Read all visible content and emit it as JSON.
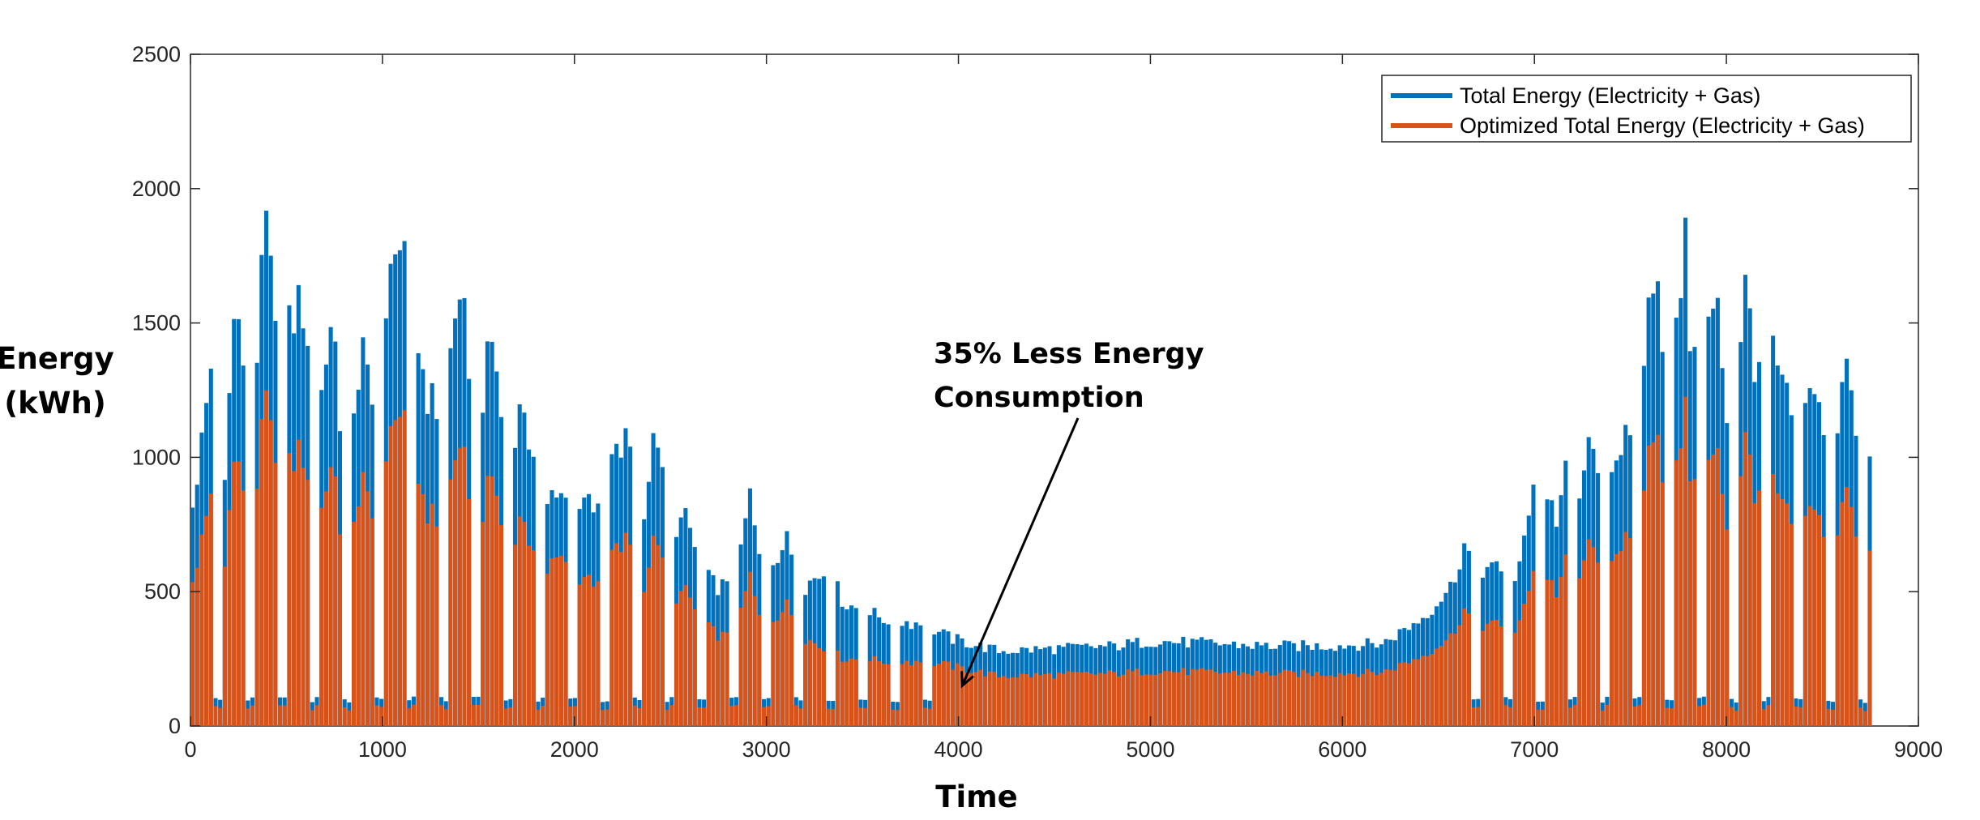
{
  "chart_data": {
    "type": "bar",
    "xlabel": "Time",
    "ylabel_lines": [
      "Energy",
      "(kWh)"
    ],
    "xlim": [
      0,
      9000
    ],
    "ylim": [
      0,
      2500
    ],
    "xticks": [
      "0",
      "1000",
      "2000",
      "3000",
      "4000",
      "5000",
      "6000",
      "7000",
      "8000",
      "9000"
    ],
    "yticks": [
      "0",
      "500",
      "1000",
      "1500",
      "2000",
      "2500"
    ],
    "grid": false,
    "legend_position": "top-right",
    "series": [
      {
        "name": "Total Energy (Electricity + Gas)",
        "color": "#0072BD",
        "peaks": [
          [
            0,
            880
          ],
          [
            70,
            1230
          ],
          [
            100,
            1460
          ],
          [
            170,
            1050
          ],
          [
            230,
            1770
          ],
          [
            270,
            1300
          ],
          [
            310,
            1250
          ],
          [
            390,
            2060
          ],
          [
            420,
            1600
          ],
          [
            450,
            1450
          ],
          [
            570,
            1740
          ],
          [
            610,
            1330
          ],
          [
            650,
            1200
          ],
          [
            730,
            1680
          ],
          [
            770,
            1230
          ],
          [
            810,
            1180
          ],
          [
            890,
            1500
          ],
          [
            930,
            1270
          ],
          [
            970,
            1200
          ],
          [
            1060,
            2050
          ],
          [
            1090,
            1860
          ],
          [
            1120,
            1750
          ],
          [
            1150,
            1630
          ],
          [
            1230,
            1310
          ],
          [
            1260,
            1280
          ],
          [
            1300,
            1240
          ],
          [
            1400,
            1810
          ],
          [
            1440,
            1300
          ],
          [
            1480,
            1210
          ],
          [
            1570,
            1570
          ],
          [
            1610,
            1200
          ],
          [
            1650,
            1150
          ],
          [
            1730,
            1290
          ],
          [
            1770,
            1040
          ],
          [
            1810,
            960
          ],
          [
            1900,
            930
          ],
          [
            1960,
            860
          ],
          [
            2000,
            920
          ],
          [
            2060,
            920
          ],
          [
            2100,
            890
          ],
          [
            2160,
            1050
          ],
          [
            2220,
            1080
          ],
          [
            2260,
            1140
          ],
          [
            2300,
            1110
          ],
          [
            2350,
            880
          ],
          [
            2420,
            1200
          ],
          [
            2470,
            800
          ],
          [
            2580,
            820
          ],
          [
            2640,
            640
          ],
          [
            2700,
            570
          ],
          [
            2760,
            560
          ],
          [
            2830,
            520
          ],
          [
            2900,
            940
          ],
          [
            2960,
            620
          ],
          [
            3100,
            740
          ],
          [
            3180,
            560
          ],
          [
            3300,
            620
          ],
          [
            3400,
            490
          ],
          [
            3600,
            430
          ],
          [
            3800,
            410
          ],
          [
            3950,
            350
          ],
          [
            4200,
            300
          ],
          [
            4500,
            310
          ],
          [
            4800,
            320
          ],
          [
            5000,
            340
          ],
          [
            5300,
            330
          ],
          [
            5600,
            320
          ],
          [
            5900,
            320
          ],
          [
            6200,
            330
          ],
          [
            6400,
            430
          ],
          [
            6560,
            560
          ],
          [
            6620,
            730
          ],
          [
            6680,
            640
          ],
          [
            6800,
            620
          ],
          [
            6900,
            560
          ],
          [
            7000,
            1090
          ],
          [
            7060,
            930
          ],
          [
            7100,
            820
          ],
          [
            7200,
            1160
          ],
          [
            7230,
            860
          ],
          [
            7290,
            1240
          ],
          [
            7330,
            850
          ],
          [
            7380,
            1060
          ],
          [
            7460,
            1180
          ],
          [
            7520,
            1000
          ],
          [
            7620,
            1950
          ],
          [
            7650,
            1520
          ],
          [
            7690,
            1470
          ],
          [
            7780,
            1930
          ],
          [
            7800,
            1440
          ],
          [
            7840,
            1400
          ],
          [
            7930,
            1800
          ],
          [
            7960,
            1450
          ],
          [
            7990,
            1280
          ],
          [
            8100,
            1810
          ],
          [
            8120,
            1450
          ],
          [
            8180,
            1330
          ],
          [
            8270,
            1550
          ],
          [
            8320,
            1230
          ],
          [
            8380,
            1200
          ],
          [
            8460,
            1380
          ],
          [
            8500,
            1200
          ],
          [
            8550,
            1120
          ],
          [
            8610,
            1430
          ],
          [
            8650,
            1300
          ],
          [
            8700,
            1110
          ],
          [
            8740,
            1060
          ]
        ]
      },
      {
        "name": "Optimized Total Energy (Electricity + Gas)",
        "color": "#D95319",
        "peaks": [
          [
            0,
            580
          ],
          [
            70,
            800
          ],
          [
            100,
            950
          ],
          [
            170,
            680
          ],
          [
            230,
            1150
          ],
          [
            270,
            850
          ],
          [
            310,
            820
          ],
          [
            390,
            1340
          ],
          [
            420,
            1040
          ],
          [
            450,
            940
          ],
          [
            570,
            1130
          ],
          [
            610,
            860
          ],
          [
            650,
            780
          ],
          [
            730,
            1090
          ],
          [
            770,
            800
          ],
          [
            810,
            770
          ],
          [
            890,
            980
          ],
          [
            930,
            820
          ],
          [
            970,
            780
          ],
          [
            1060,
            1330
          ],
          [
            1090,
            1210
          ],
          [
            1120,
            1140
          ],
          [
            1150,
            1060
          ],
          [
            1230,
            850
          ],
          [
            1260,
            830
          ],
          [
            1300,
            810
          ],
          [
            1400,
            1180
          ],
          [
            1440,
            850
          ],
          [
            1480,
            790
          ],
          [
            1570,
            1020
          ],
          [
            1610,
            780
          ],
          [
            1650,
            750
          ],
          [
            1730,
            840
          ],
          [
            1770,
            680
          ],
          [
            1810,
            620
          ],
          [
            1900,
            690
          ],
          [
            1960,
            610
          ],
          [
            2000,
            600
          ],
          [
            2060,
            600
          ],
          [
            2100,
            580
          ],
          [
            2160,
            680
          ],
          [
            2220,
            700
          ],
          [
            2260,
            740
          ],
          [
            2300,
            720
          ],
          [
            2350,
            570
          ],
          [
            2420,
            780
          ],
          [
            2470,
            520
          ],
          [
            2580,
            530
          ],
          [
            2640,
            420
          ],
          [
            2700,
            380
          ],
          [
            2760,
            360
          ],
          [
            2830,
            340
          ],
          [
            2900,
            610
          ],
          [
            2960,
            400
          ],
          [
            3100,
            480
          ],
          [
            3180,
            360
          ],
          [
            3300,
            300
          ],
          [
            3400,
            270
          ],
          [
            3600,
            260
          ],
          [
            3800,
            260
          ],
          [
            3950,
            240
          ],
          [
            4200,
            200
          ],
          [
            4500,
            205
          ],
          [
            4800,
            210
          ],
          [
            5000,
            220
          ],
          [
            5300,
            215
          ],
          [
            5600,
            210
          ],
          [
            5900,
            210
          ],
          [
            6200,
            215
          ],
          [
            6400,
            280
          ],
          [
            6560,
            360
          ],
          [
            6620,
            470
          ],
          [
            6680,
            410
          ],
          [
            6800,
            400
          ],
          [
            6900,
            360
          ],
          [
            7000,
            700
          ],
          [
            7060,
            600
          ],
          [
            7100,
            530
          ],
          [
            7200,
            750
          ],
          [
            7230,
            560
          ],
          [
            7290,
            800
          ],
          [
            7330,
            550
          ],
          [
            7380,
            690
          ],
          [
            7460,
            760
          ],
          [
            7520,
            650
          ],
          [
            7620,
            1280
          ],
          [
            7650,
            990
          ],
          [
            7690,
            960
          ],
          [
            7780,
            1250
          ],
          [
            7800,
            940
          ],
          [
            7840,
            910
          ],
          [
            7930,
            1170
          ],
          [
            7960,
            940
          ],
          [
            7990,
            830
          ],
          [
            8100,
            1180
          ],
          [
            8120,
            940
          ],
          [
            8180,
            860
          ],
          [
            8270,
            1000
          ],
          [
            8320,
            800
          ],
          [
            8380,
            780
          ],
          [
            8460,
            900
          ],
          [
            8500,
            780
          ],
          [
            8550,
            730
          ],
          [
            8610,
            930
          ],
          [
            8650,
            850
          ],
          [
            8700,
            720
          ],
          [
            8740,
            690
          ]
        ]
      }
    ],
    "annotation": {
      "lines": [
        "35% Less Energy",
        "Consumption"
      ],
      "arrow_to": [
        4020,
        150
      ]
    }
  }
}
